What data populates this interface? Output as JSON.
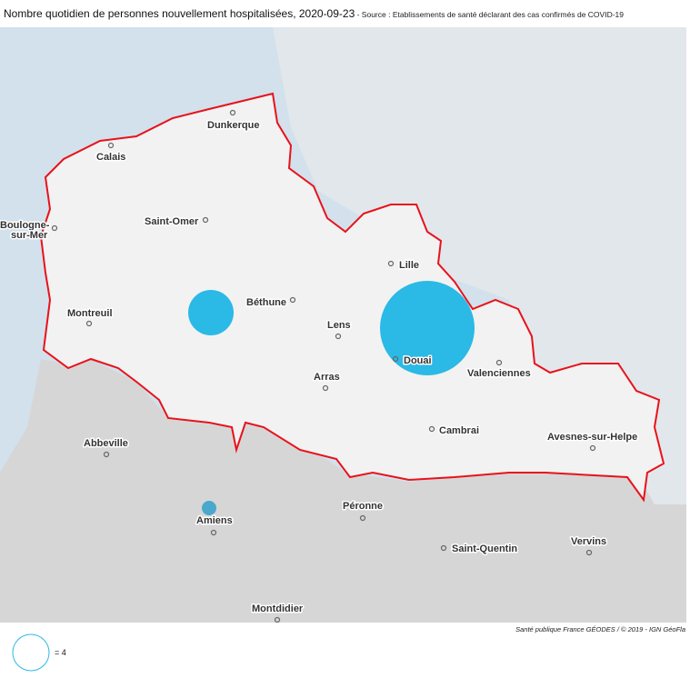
{
  "header": {
    "title": "Nombre quotidien de personnes nouvellement hospitalisées, 2020-09-23",
    "source": " - Source : Etablissements de santé déclarant des cas confirmés de COVID-19"
  },
  "colors": {
    "bubble": "#2bb9e6",
    "bubble_outside": "#4aa8cc",
    "region_border": "#e8121b",
    "region_fill": "#f2f2f2",
    "outside_land": "#d6d6d6",
    "sea": "#d2e1ec",
    "neighbor": "#e2e7ec"
  },
  "cities": [
    "Dunkerque",
    "Calais",
    "Saint-Omer",
    "Boulogne-",
    "sur-Mer",
    "Lille",
    "Béthune",
    "Montreuil",
    "Lens",
    "Douai",
    "Valenciennes",
    "Arras",
    "Cambrai",
    "Avesnes-sur-Helpe",
    "Abbeville",
    "Amiens",
    "Péronne",
    "Saint-Quentin",
    "Vervins",
    "Montdidier"
  ],
  "bubbles": [
    {
      "place": "Douai",
      "value": 27
    },
    {
      "place": "Béthune",
      "value": 6
    },
    {
      "place": "Amiens",
      "value": 1
    }
  ],
  "legend": {
    "label": "= 4",
    "value": 4
  },
  "credit": "Santé publique France GÉODES / © 2019 - IGN GéoFla"
}
